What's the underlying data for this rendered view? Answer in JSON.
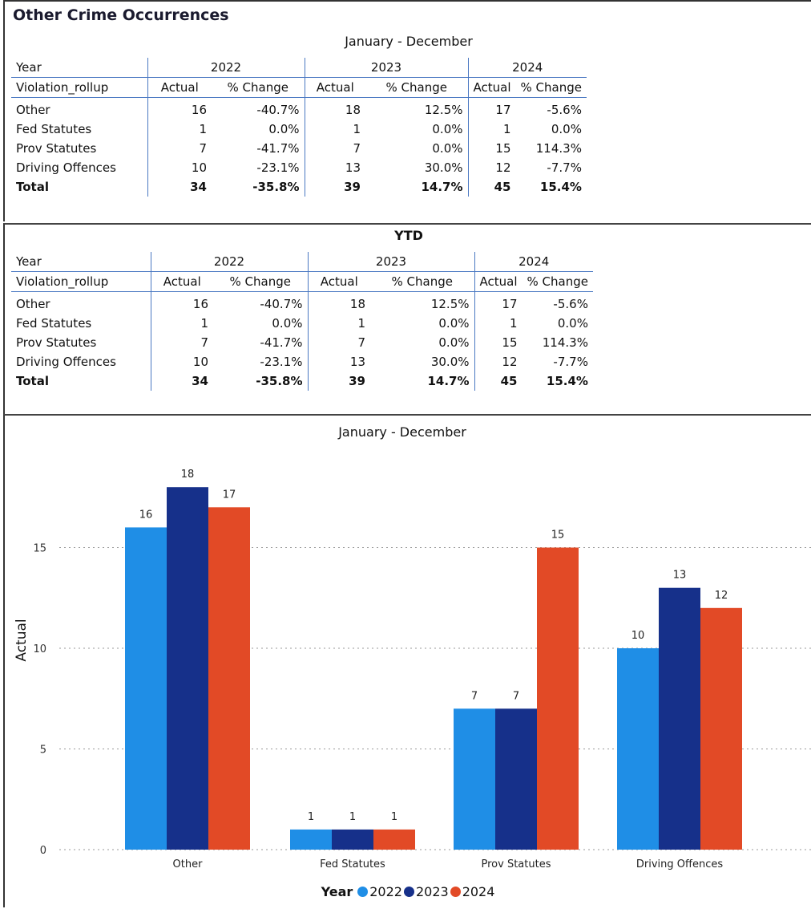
{
  "report": {
    "title": "Other Crime Occurrences"
  },
  "tables": [
    {
      "caption": "January - December",
      "year_header": "Year",
      "row_header": "Violation_rollup",
      "years": [
        "2022",
        "2023",
        "2024"
      ],
      "col_actual": "Actual",
      "col_change": "% Change",
      "rows": [
        {
          "label": "Other",
          "vals": [
            [
              "16",
              "-40.7%"
            ],
            [
              "18",
              "12.5%"
            ],
            [
              "17",
              "-5.6%"
            ]
          ]
        },
        {
          "label": "Fed Statutes",
          "vals": [
            [
              "1",
              "0.0%"
            ],
            [
              "1",
              "0.0%"
            ],
            [
              "1",
              "0.0%"
            ]
          ]
        },
        {
          "label": "Prov Statutes",
          "vals": [
            [
              "7",
              "-41.7%"
            ],
            [
              "7",
              "0.0%"
            ],
            [
              "15",
              "114.3%"
            ]
          ]
        },
        {
          "label": "Driving Offences",
          "vals": [
            [
              "10",
              "-23.1%"
            ],
            [
              "13",
              "30.0%"
            ],
            [
              "12",
              "-7.7%"
            ]
          ]
        },
        {
          "label": "Total",
          "vals": [
            [
              "34",
              "-35.8%"
            ],
            [
              "39",
              "14.7%"
            ],
            [
              "45",
              "15.4%"
            ]
          ]
        }
      ]
    },
    {
      "caption": "YTD",
      "year_header": "Year",
      "row_header": "Violation_rollup",
      "years": [
        "2022",
        "2023",
        "2024"
      ],
      "col_actual": "Actual",
      "col_change": "% Change",
      "rows": [
        {
          "label": "Other",
          "vals": [
            [
              "16",
              "-40.7%"
            ],
            [
              "18",
              "12.5%"
            ],
            [
              "17",
              "-5.6%"
            ]
          ]
        },
        {
          "label": "Fed Statutes",
          "vals": [
            [
              "1",
              "0.0%"
            ],
            [
              "1",
              "0.0%"
            ],
            [
              "1",
              "0.0%"
            ]
          ]
        },
        {
          "label": "Prov Statutes",
          "vals": [
            [
              "7",
              "-41.7%"
            ],
            [
              "7",
              "0.0%"
            ],
            [
              "15",
              "114.3%"
            ]
          ]
        },
        {
          "label": "Driving Offences",
          "vals": [
            [
              "10",
              "-23.1%"
            ],
            [
              "13",
              "30.0%"
            ],
            [
              "12",
              "-7.7%"
            ]
          ]
        },
        {
          "label": "Total",
          "vals": [
            [
              "34",
              "-35.8%"
            ],
            [
              "39",
              "14.7%"
            ],
            [
              "45",
              "15.4%"
            ]
          ]
        }
      ]
    }
  ],
  "chart_data": {
    "type": "bar",
    "title": "January - December",
    "xlabel": "",
    "ylabel": "Actual",
    "ylim": [
      0,
      18
    ],
    "yticks": [
      0,
      5,
      10,
      15
    ],
    "grid": true,
    "categories": [
      "Other",
      "Fed Statutes",
      "Prov Statutes",
      "Driving Offences"
    ],
    "series": [
      {
        "name": "2022",
        "color": "#1f8ee6",
        "values": [
          16,
          1,
          7,
          10
        ]
      },
      {
        "name": "2023",
        "color": "#16308a",
        "values": [
          18,
          1,
          7,
          13
        ]
      },
      {
        "name": "2024",
        "color": "#e24a26",
        "values": [
          17,
          1,
          15,
          12
        ]
      }
    ],
    "legend": {
      "title": "Year",
      "position": "bottom"
    }
  }
}
